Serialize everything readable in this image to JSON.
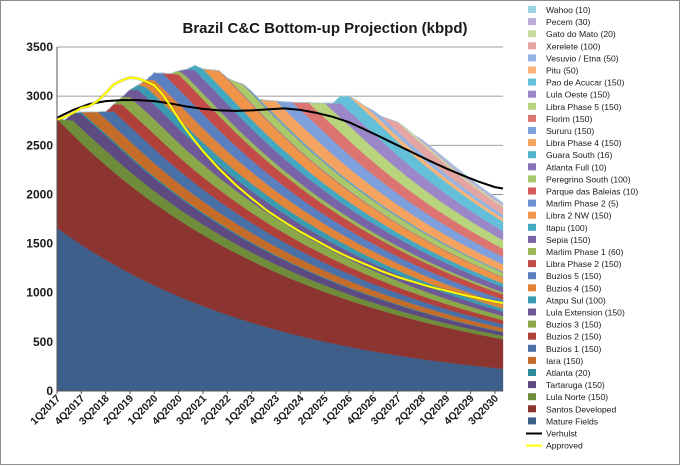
{
  "chart_data": {
    "type": "area",
    "title": "Brazil C&C Bottom-up Projection (kbpd)",
    "xlabel": "",
    "ylabel": "",
    "ylim": [
      0,
      3500
    ],
    "yticks": [
      0,
      500,
      1000,
      1500,
      2000,
      2500,
      3000,
      3500
    ],
    "xrange": [
      2017.0,
      2030.75
    ],
    "xtick_labels": [
      "1Q2017",
      "4Q2017",
      "3Q2018",
      "2Q2019",
      "1Q2020",
      "4Q2020",
      "3Q2021",
      "2Q2022",
      "1Q2023",
      "4Q2023",
      "3Q2024",
      "2Q2025",
      "1Q2026",
      "4Q2026",
      "3Q2027",
      "2Q2028",
      "1Q2029",
      "4Q2029",
      "3Q2030"
    ],
    "grid": "horizontal",
    "legend_position": "right",
    "stacked_series": [
      {
        "name": "Mature Fields",
        "color": "#3e5f8a",
        "start": 2017.0,
        "peak": 1660,
        "plateau": 0,
        "decline": 0.145,
        "ramp": 0
      },
      {
        "name": "Santos Developed",
        "color": "#8c3430",
        "start": 2017.0,
        "peak": 1110,
        "plateau": 0,
        "decline": 0.095,
        "ramp": 0
      },
      {
        "name": "Lula Norte  (150)",
        "color": "#6e8c3a",
        "start": 2017.0,
        "peak": 150,
        "plateau": 1.0,
        "decline": 0.12,
        "ramp": 0.5
      },
      {
        "name": "Tartaruga  (150)",
        "color": "#5c4a80",
        "start": 2017.25,
        "peak": 150,
        "plateau": 1.0,
        "decline": 0.12,
        "ramp": 0.5
      },
      {
        "name": "Atlanta  (20)",
        "color": "#2d8a9a",
        "start": 2017.5,
        "peak": 20,
        "plateau": 1.0,
        "decline": 0.12,
        "ramp": 0.3
      },
      {
        "name": "Iara (150)",
        "color": "#c46c2a",
        "start": 2017.75,
        "peak": 150,
        "plateau": 1.0,
        "decline": 0.12,
        "ramp": 0.5
      },
      {
        "name": "Buzios 1 (150)",
        "color": "#4a70a8",
        "start": 2018.25,
        "peak": 150,
        "plateau": 1.0,
        "decline": 0.12,
        "ramp": 0.5
      },
      {
        "name": "Buzios 2 (150)",
        "color": "#b0403a",
        "start": 2018.5,
        "peak": 150,
        "plateau": 1.0,
        "decline": 0.12,
        "ramp": 0.5
      },
      {
        "name": "Buzios 3 (150)",
        "color": "#8aa84a",
        "start": 2018.75,
        "peak": 150,
        "plateau": 1.0,
        "decline": 0.12,
        "ramp": 0.5
      },
      {
        "name": "Lula Extension (150)",
        "color": "#6e5896",
        "start": 2019.0,
        "peak": 150,
        "plateau": 1.0,
        "decline": 0.12,
        "ramp": 0.5
      },
      {
        "name": "Atapu Sul (100)",
        "color": "#3a9ab0",
        "start": 2019.25,
        "peak": 100,
        "plateau": 1.0,
        "decline": 0.12,
        "ramp": 0.5
      },
      {
        "name": "Buzios 4 (150)",
        "color": "#e0843a",
        "start": 2019.5,
        "peak": 150,
        "plateau": 1.0,
        "decline": 0.12,
        "ramp": 0.5
      },
      {
        "name": "Buzios 5 (150)",
        "color": "#5a80c0",
        "start": 2019.75,
        "peak": 150,
        "plateau": 1.0,
        "decline": 0.12,
        "ramp": 0.5
      },
      {
        "name": "Libra Phase 2 (150)",
        "color": "#c44c48",
        "start": 2020.25,
        "peak": 150,
        "plateau": 1.0,
        "decline": 0.12,
        "ramp": 0.5
      },
      {
        "name": "Marlim Phase 1 (60)",
        "color": "#9ab85a",
        "start": 2020.5,
        "peak": 60,
        "plateau": 1.0,
        "decline": 0.12,
        "ramp": 0.4
      },
      {
        "name": "Sepia (150)",
        "color": "#7a64a8",
        "start": 2020.75,
        "peak": 150,
        "plateau": 1.0,
        "decline": 0.12,
        "ramp": 0.5
      },
      {
        "name": "Itapu (100)",
        "color": "#44a8c0",
        "start": 2021.0,
        "peak": 100,
        "plateau": 1.0,
        "decline": 0.12,
        "ramp": 0.5
      },
      {
        "name": "Libra 2 NW (150)",
        "color": "#f0944a",
        "start": 2021.5,
        "peak": 150,
        "plateau": 1.0,
        "decline": 0.12,
        "ramp": 0.5
      },
      {
        "name": "Marlim Phase 2 (5)",
        "color": "#6c90d0",
        "start": 2021.75,
        "peak": 5,
        "plateau": 1.0,
        "decline": 0.12,
        "ramp": 0.3
      },
      {
        "name": "Parque das Baleias (10)",
        "color": "#d45c5a",
        "start": 2022.0,
        "peak": 10,
        "plateau": 1.0,
        "decline": 0.12,
        "ramp": 0.3
      },
      {
        "name": "Peregrino South (100)",
        "color": "#a8c86a",
        "start": 2022.25,
        "peak": 100,
        "plateau": 1.0,
        "decline": 0.12,
        "ramp": 0.5
      },
      {
        "name": "Atlanta Full (10)",
        "color": "#8a72b8",
        "start": 2022.5,
        "peak": 10,
        "plateau": 1.0,
        "decline": 0.12,
        "ramp": 0.3
      },
      {
        "name": "Guara South (16)",
        "color": "#50b4cc",
        "start": 2022.75,
        "peak": 16,
        "plateau": 1.0,
        "decline": 0.12,
        "ramp": 0.3
      },
      {
        "name": "Libra Phase 4 (150)",
        "color": "#f4a460",
        "start": 2023.25,
        "peak": 150,
        "plateau": 1.0,
        "decline": 0.12,
        "ramp": 0.5
      },
      {
        "name": "Sururu (150)",
        "color": "#7ea0dc",
        "start": 2023.75,
        "peak": 150,
        "plateau": 1.0,
        "decline": 0.12,
        "ramp": 0.5
      },
      {
        "name": "Florim (150)",
        "color": "#dc7472",
        "start": 2024.25,
        "peak": 150,
        "plateau": 1.0,
        "decline": 0.12,
        "ramp": 0.5
      },
      {
        "name": "Libra Phase 5 (150)",
        "color": "#b8d47c",
        "start": 2024.75,
        "peak": 150,
        "plateau": 1.0,
        "decline": 0.12,
        "ramp": 0.5
      },
      {
        "name": "Lula Oeste (150)",
        "color": "#9c88c8",
        "start": 2025.25,
        "peak": 150,
        "plateau": 1.0,
        "decline": 0.12,
        "ramp": 0.5
      },
      {
        "name": "Pao de Acucar (150)",
        "color": "#64c0d8",
        "start": 2025.5,
        "peak": 150,
        "plateau": 1.0,
        "decline": 0.12,
        "ramp": 0.5
      },
      {
        "name": "Pitu (50)",
        "color": "#f8b47a",
        "start": 2026.0,
        "peak": 50,
        "plateau": 1.0,
        "decline": 0.12,
        "ramp": 0.4
      },
      {
        "name": "Vesuvio / Etna (50)",
        "color": "#94b4e4",
        "start": 2026.5,
        "peak": 50,
        "plateau": 1.0,
        "decline": 0.12,
        "ramp": 0.4
      },
      {
        "name": "Xerelete (100)",
        "color": "#e4a4a2",
        "start": 2027.0,
        "peak": 100,
        "plateau": 1.0,
        "decline": 0.12,
        "ramp": 0.5
      },
      {
        "name": "Gato do Mato (20)",
        "color": "#c8dca0",
        "start": 2027.5,
        "peak": 20,
        "plateau": 1.0,
        "decline": 0.12,
        "ramp": 0.3
      },
      {
        "name": "Pecem (30)",
        "color": "#bcaed8",
        "start": 2028.0,
        "peak": 30,
        "plateau": 1.0,
        "decline": 0.12,
        "ramp": 0.3
      },
      {
        "name": "Wahoo (10)",
        "color": "#9cd4e4",
        "start": 2028.5,
        "peak": 10,
        "plateau": 1.0,
        "decline": 0.12,
        "ramp": 0.3
      }
    ],
    "lines": [
      {
        "name": "Verhulst",
        "color": "#000000",
        "x": [
          2017.0,
          2017.5,
          2018.0,
          2018.5,
          2019.0,
          2019.5,
          2020.0,
          2020.5,
          2021.0,
          2021.5,
          2022.0,
          2022.5,
          2023.0,
          2023.5,
          2024.0,
          2024.5,
          2025.0,
          2025.5,
          2026.0,
          2026.5,
          2027.0,
          2027.5,
          2028.0,
          2028.5,
          2029.0,
          2029.5,
          2030.0,
          2030.5,
          2030.75
        ],
        "y": [
          2780,
          2860,
          2920,
          2950,
          2960,
          2960,
          2950,
          2925,
          2895,
          2870,
          2855,
          2850,
          2855,
          2865,
          2875,
          2860,
          2830,
          2790,
          2735,
          2660,
          2580,
          2500,
          2420,
          2340,
          2265,
          2195,
          2130,
          2075,
          2060
        ]
      },
      {
        "name": "Approved",
        "color": "#ffff00",
        "x": [
          2017.0,
          2017.25,
          2017.5,
          2017.75,
          2018.0,
          2018.25,
          2018.5,
          2018.75,
          2019.0,
          2019.25,
          2019.5,
          2019.75,
          2020.0,
          2020.25,
          2020.5,
          2020.75,
          2021.0,
          2021.5,
          2022.0,
          2022.5,
          2023.0,
          2023.5,
          2024.0,
          2024.5,
          2025.0,
          2025.5,
          2026.0,
          2026.5,
          2027.0,
          2027.5,
          2028.0,
          2028.5,
          2029.0,
          2029.5,
          2030.0,
          2030.5,
          2030.75
        ],
        "y": [
          2760,
          2790,
          2830,
          2880,
          2900,
          2950,
          3030,
          3120,
          3160,
          3190,
          3180,
          3150,
          3110,
          3020,
          2900,
          2770,
          2650,
          2440,
          2260,
          2100,
          1960,
          1830,
          1720,
          1620,
          1530,
          1440,
          1360,
          1290,
          1220,
          1160,
          1110,
          1060,
          1020,
          980,
          945,
          910,
          895
        ]
      }
    ]
  }
}
